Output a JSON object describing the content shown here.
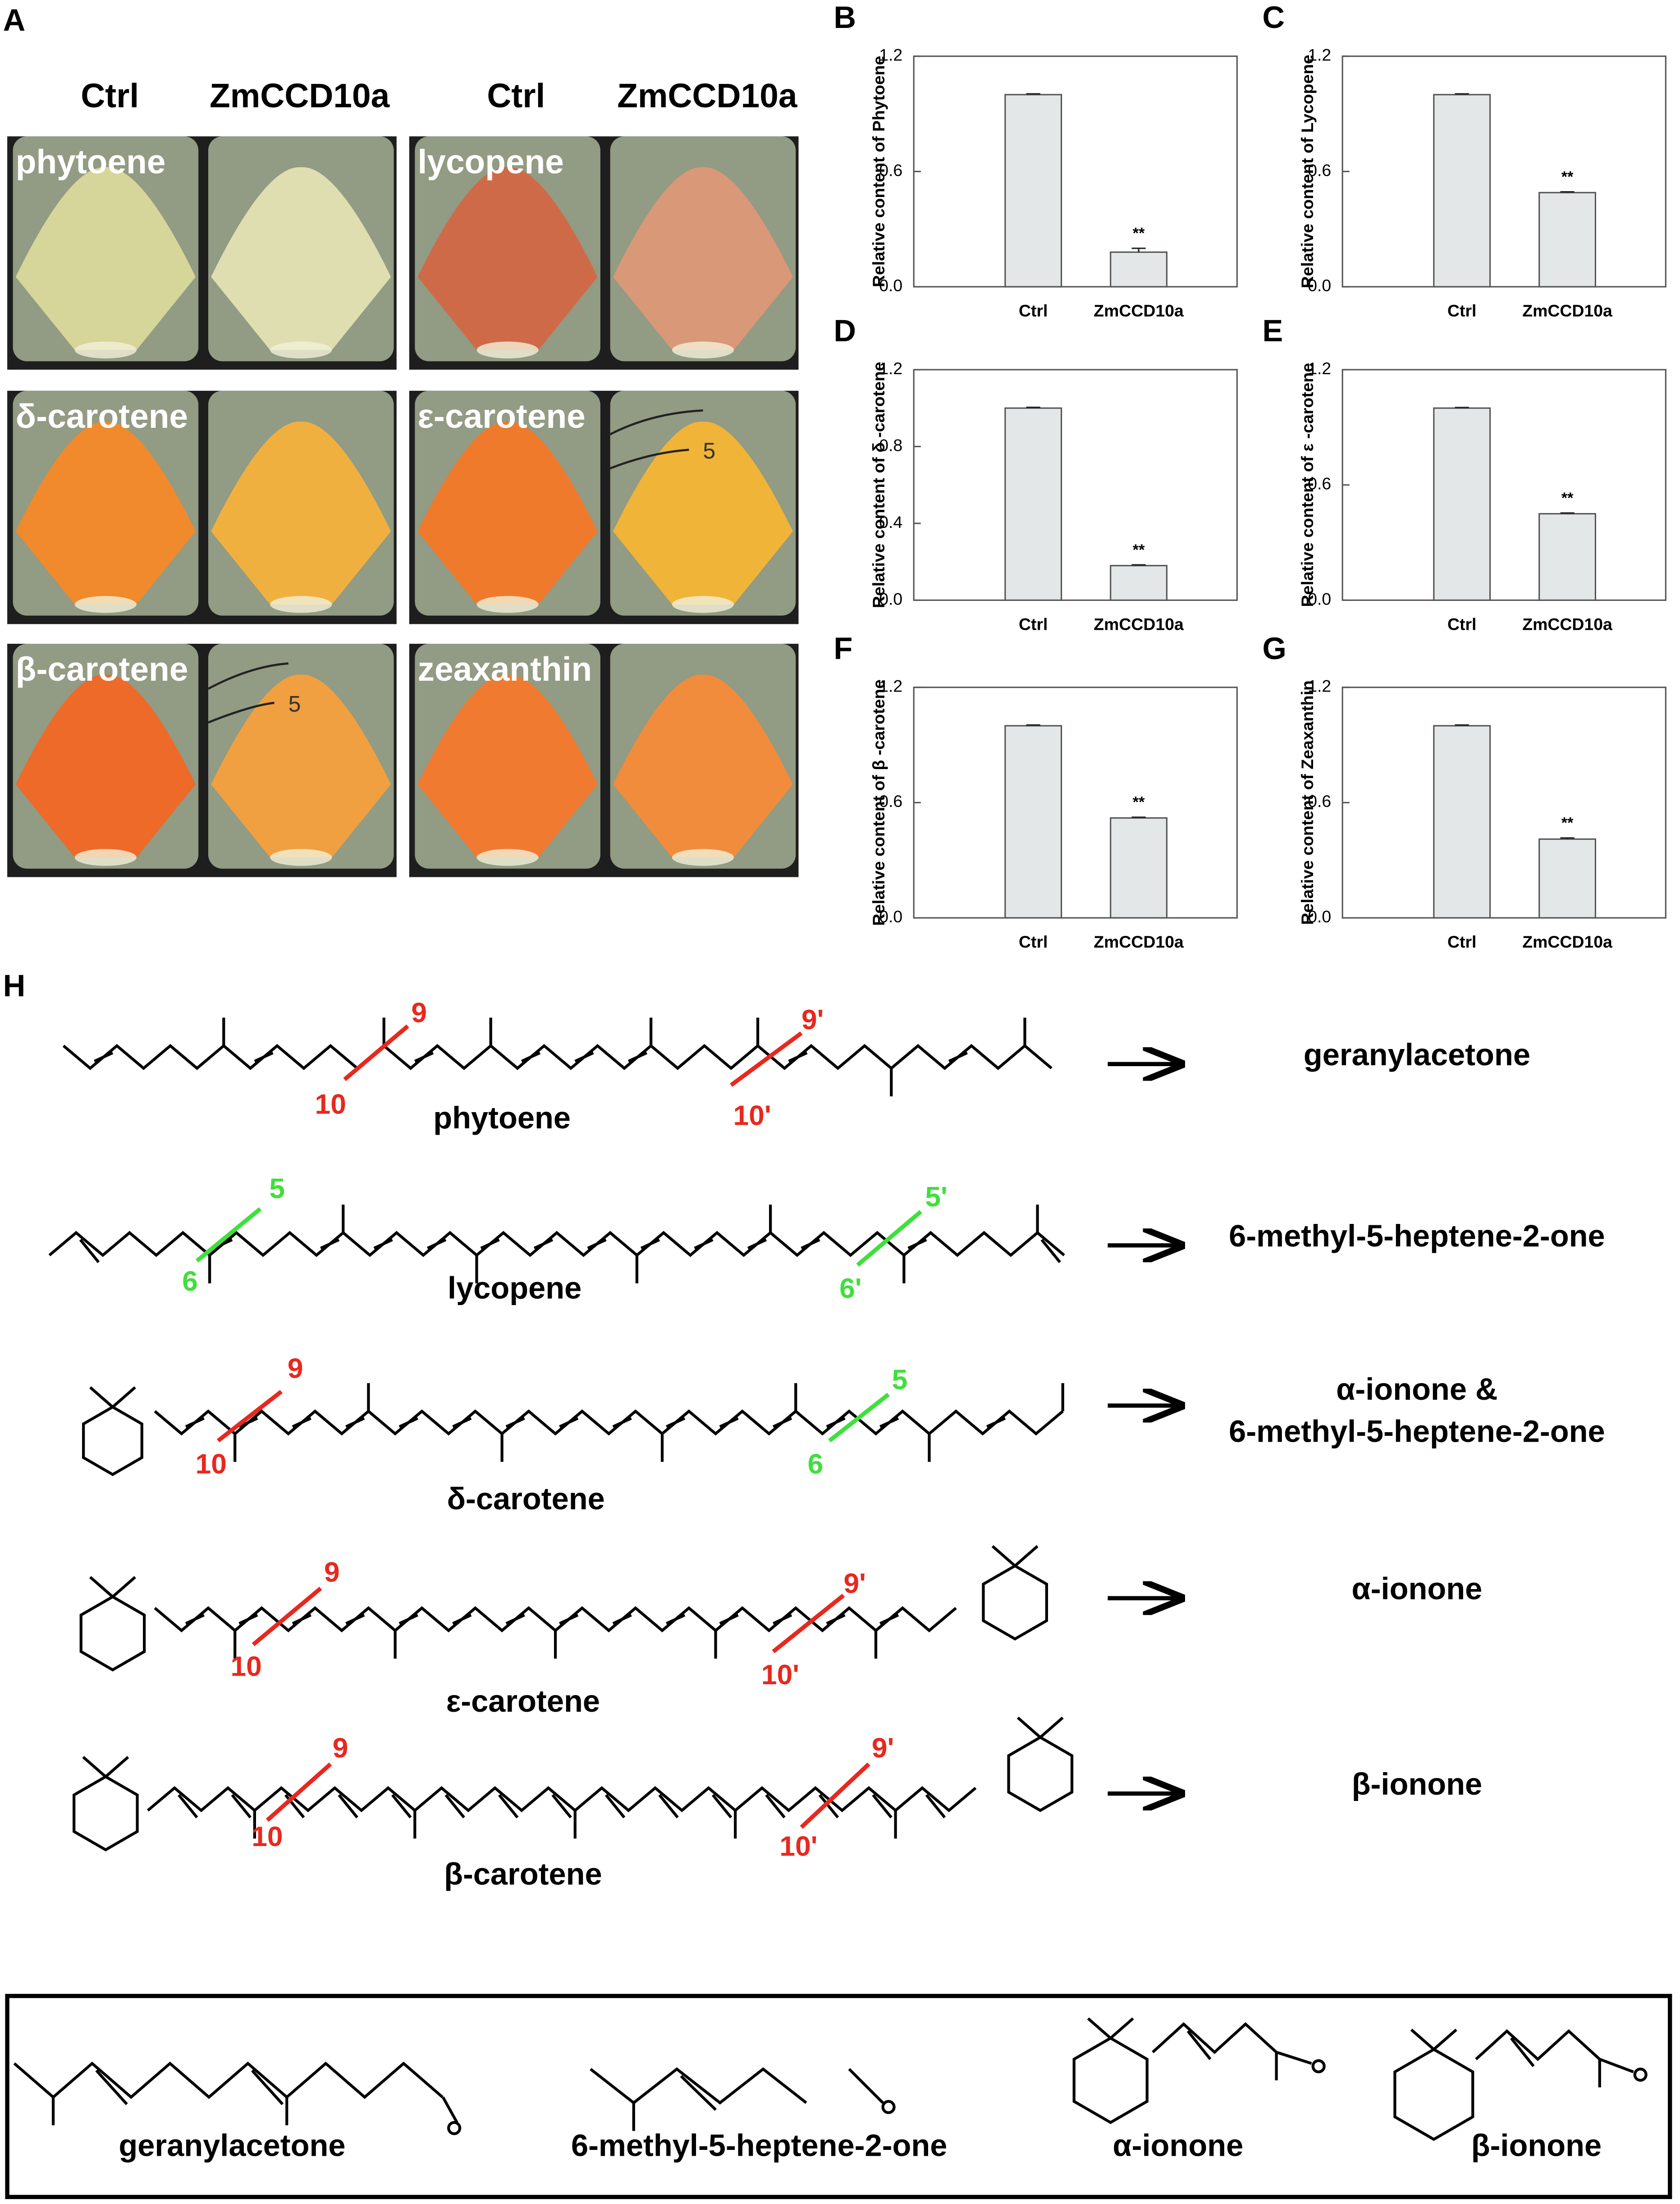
{
  "panel_a": {
    "label": "A",
    "column_headers": [
      "Ctrl",
      "ZmCCD10a",
      "Ctrl",
      "ZmCCD10a"
    ],
    "tubes": [
      "phytoene",
      "lycopene",
      "δ-carotene",
      "ε-carotene",
      "β-carotene",
      "zeaxanthin"
    ],
    "tube_marks": [
      "5",
      "5"
    ]
  },
  "chart_data": [
    {
      "type": "bar",
      "panel": "B",
      "ylabel": "Relative content of Phytoene",
      "categories": [
        "Ctrl",
        "ZmCCD10a"
      ],
      "values": [
        1.0,
        0.18
      ],
      "errors": [
        0.004,
        0.02
      ],
      "annotation": "**",
      "color": "#e4e7e8",
      "ylim": [
        0,
        1.2
      ],
      "yticks": [
        {
          "value": 0,
          "label": "0.0"
        },
        0.6,
        1.2
      ]
    },
    {
      "type": "bar",
      "panel": "C",
      "ylabel": "Relative content of Lycopene",
      "categories": [
        "Ctrl",
        "ZmCCD10a"
      ],
      "values": [
        1.0,
        0.49
      ],
      "errors": [
        0.004,
        0.004
      ],
      "annotation": "**",
      "color": "#e4e7e8",
      "ylim": [
        0,
        1.2
      ],
      "yticks": [
        {
          "value": 0,
          "label": "0.0"
        },
        0.6,
        1.2
      ]
    },
    {
      "type": "bar",
      "panel": "D",
      "ylabel": "Relative content of δ -carotene",
      "categories": [
        "Ctrl",
        "ZmCCD10a"
      ],
      "values": [
        1.0,
        0.18
      ],
      "errors": [
        0.004,
        0.004
      ],
      "annotation": "**",
      "color": "#e4e7e8",
      "ylim": [
        0,
        1.2
      ],
      "yticks": [
        {
          "value": 0,
          "label": "0.0"
        },
        0.4,
        0.8,
        1.2
      ]
    },
    {
      "type": "bar",
      "panel": "E",
      "ylabel": "Relative content of ε -carotene",
      "categories": [
        "Ctrl",
        "ZmCCD10a"
      ],
      "values": [
        1.0,
        0.45
      ],
      "errors": [
        0.003,
        0.004
      ],
      "annotation": "**",
      "color": "#e4e7e8",
      "ylim": [
        0,
        1.2
      ],
      "yticks": [
        {
          "value": 0,
          "label": "0.0"
        },
        0.6,
        1.2
      ]
    },
    {
      "type": "bar",
      "panel": "F",
      "ylabel": "Relative content of β -carotene",
      "categories": [
        "Ctrl",
        "ZmCCD10a"
      ],
      "values": [
        1.0,
        0.52
      ],
      "errors": [
        0.004,
        0.004
      ],
      "annotation": "**",
      "color": "#e4e7e8",
      "ylim": [
        0,
        1.2
      ],
      "yticks": [
        {
          "value": 0,
          "label": "0.0"
        },
        0.6,
        1.2
      ]
    },
    {
      "type": "bar",
      "panel": "G",
      "ylabel": "Relative content of Zeaxanthin",
      "categories": [
        "Ctrl",
        "ZmCCD10a"
      ],
      "values": [
        1.0,
        0.41
      ],
      "errors": [
        0.004,
        0.006
      ],
      "annotation": "**",
      "color": "#e4e7e8",
      "ylim": [
        0,
        1.2
      ],
      "yticks": [
        {
          "value": 0,
          "label": "0.0"
        },
        0.6,
        1.2
      ]
    }
  ],
  "panel_h": {
    "label": "H",
    "molecules": [
      {
        "name": "phytoene",
        "cut_labels": [
          "9",
          "10",
          "9'",
          "10'"
        ],
        "products": [
          "geranylacetone"
        ]
      },
      {
        "name": "lycopene",
        "cut_labels": [
          "5",
          "6",
          "5'",
          "6'"
        ],
        "products": [
          "6-methyl-5-heptene-2-one"
        ]
      },
      {
        "name": "δ-carotene",
        "cut_labels": [
          "9",
          "10",
          "5",
          "6"
        ],
        "products": [
          "α-ionone &",
          "6-methyl-5-heptene-2-one"
        ]
      },
      {
        "name": "ε-carotene",
        "cut_labels": [
          "9",
          "10",
          "9'",
          "10'"
        ],
        "products": [
          "α-ionone"
        ]
      },
      {
        "name": "β-carotene",
        "cut_labels": [
          "9",
          "10",
          "9'",
          "10'"
        ],
        "products": [
          "β-ionone"
        ]
      }
    ]
  },
  "products_box": {
    "compounds": [
      "geranylacetone",
      "6-methyl-5-heptene-2-one",
      "α-ionone",
      "β-ionone"
    ]
  }
}
